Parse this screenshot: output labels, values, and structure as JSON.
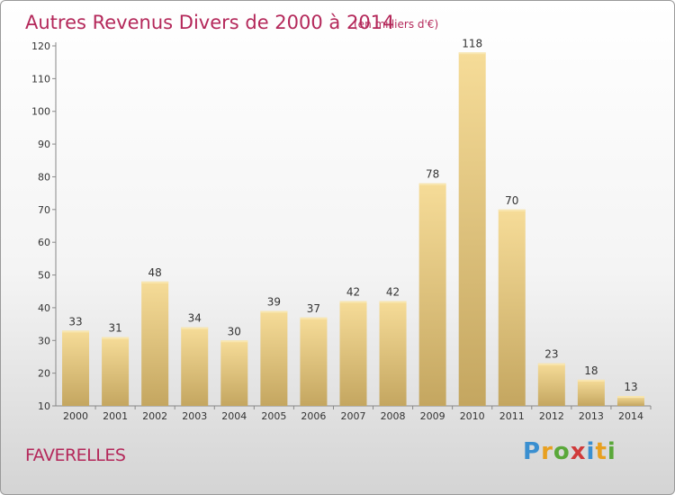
{
  "chart_data": {
    "type": "bar",
    "title": "Autres Revenus Divers de 2000 à 2014",
    "subtitle": "(en milliers d'€)",
    "categories": [
      "2000",
      "2001",
      "2002",
      "2003",
      "2004",
      "2005",
      "2006",
      "2007",
      "2008",
      "2009",
      "2010",
      "2011",
      "2012",
      "2013",
      "2014"
    ],
    "values": [
      33,
      31,
      48,
      34,
      30,
      39,
      37,
      42,
      42,
      78,
      118,
      70,
      23,
      18,
      13
    ],
    "ylim": [
      10,
      120
    ],
    "yticks": [
      10,
      20,
      30,
      40,
      50,
      60,
      70,
      80,
      90,
      100,
      110,
      120
    ],
    "xlabel": "",
    "ylabel": "",
    "grid": false,
    "legend": "none",
    "bar_color_top": "#f6dc98",
    "bar_color_bottom": "#c4a660",
    "title_color": "#b4285a"
  },
  "place_name": "FAVERELLES",
  "logo": {
    "letters": [
      "P",
      "r",
      "o",
      "x",
      "i",
      "t",
      "i"
    ],
    "colors": [
      "#3a8fd0",
      "#e8a020",
      "#5aa83a",
      "#d03a3a",
      "#3a8fd0",
      "#e8a020",
      "#5aa83a"
    ]
  }
}
